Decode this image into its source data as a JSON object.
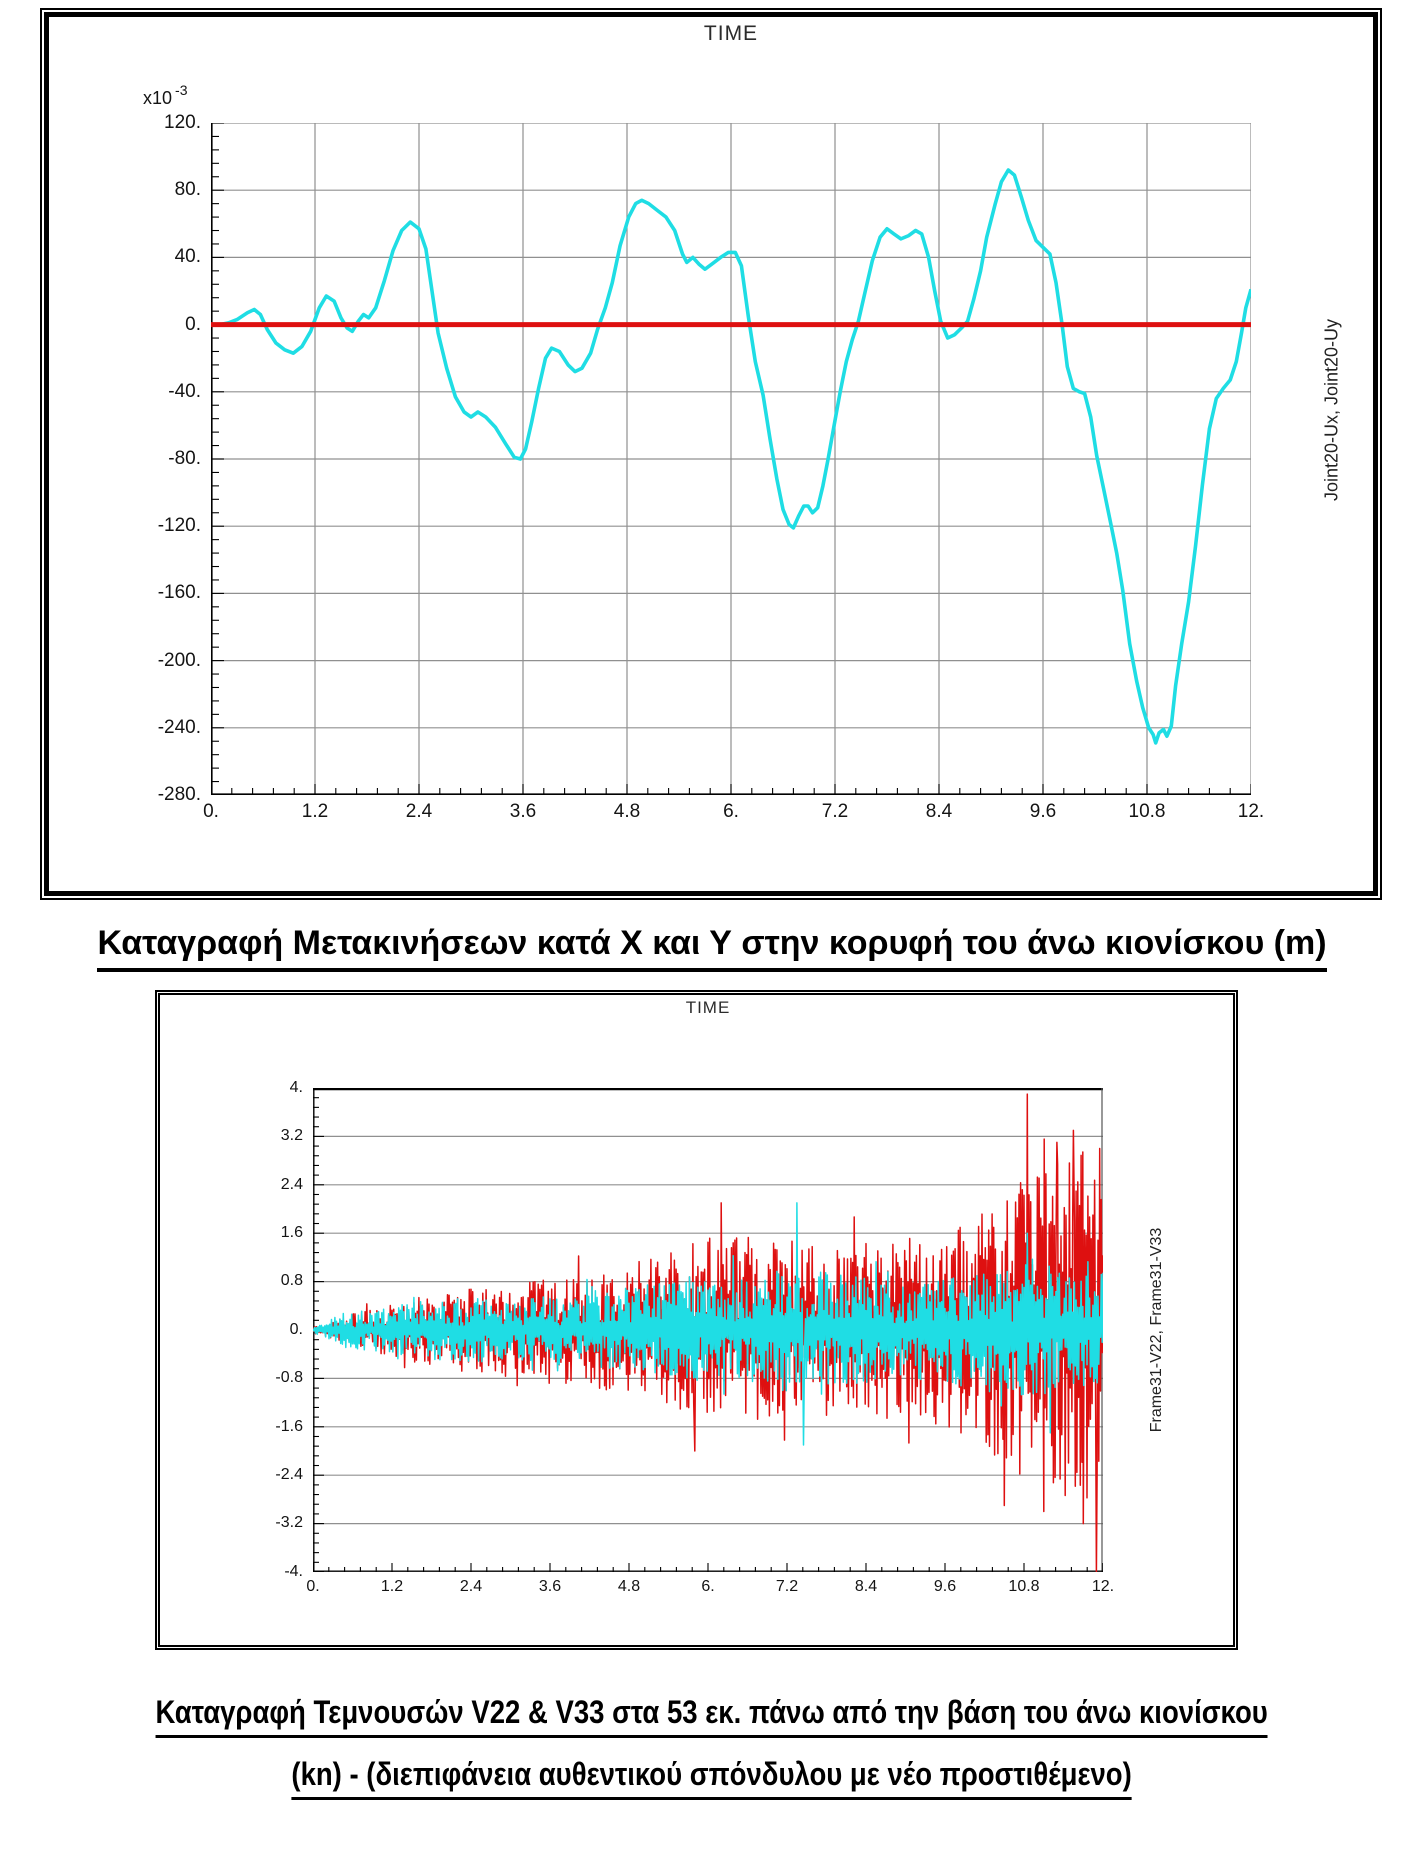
{
  "captions": {
    "top": "Καταγραφή Μετακινήσεων κατά Χ και Υ στην κορυφή του άνω κιονίσκου (m)",
    "bottom_line1": "Καταγραφή Τεμνουσών V22 & V33 στα 53 εκ. πάνω από την βάση του άνω κιονίσκου",
    "bottom_line2": "(kn) - (διεπιφάνεια αυθεντικού σπόνδυλου με νέο προστιθέμενο)"
  },
  "colors": {
    "cyan": "#1FDDE4",
    "red": "#DE1010",
    "grid": "#909090",
    "axis": "#000000"
  },
  "chart_data": [
    {
      "type": "line",
      "title": "TIME",
      "ylabel_right": "Joint20-Ux, Joint20-Uy",
      "y_scale": {
        "base": "x10",
        "exp": "-3"
      },
      "xlim": [
        0,
        12
      ],
      "ylim": [
        -280,
        120
      ],
      "grid": "both",
      "x_tick_labels": [
        "0.",
        "1.2",
        "2.4",
        "3.6",
        "4.8",
        "6.",
        "7.2",
        "8.4",
        "9.6",
        "10.8",
        "12."
      ],
      "y_tick_labels": [
        "120.",
        "80.",
        "40.",
        "0.",
        "-40.",
        "-80.",
        "-120.",
        "-160.",
        "-200.",
        "-240.",
        "-280."
      ],
      "series": [
        {
          "name": "Joint20-Ux",
          "color": "#1FDDE4",
          "width": 3.6,
          "points": [
            [
              0,
              0
            ],
            [
              0.1,
              0
            ],
            [
              0.2,
              1
            ],
            [
              0.3,
              3
            ],
            [
              0.42,
              7
            ],
            [
              0.5,
              9
            ],
            [
              0.57,
              6
            ],
            [
              0.65,
              -3
            ],
            [
              0.75,
              -11
            ],
            [
              0.85,
              -15
            ],
            [
              0.95,
              -17
            ],
            [
              1.05,
              -13
            ],
            [
              1.15,
              -4
            ],
            [
              1.25,
              10
            ],
            [
              1.33,
              17
            ],
            [
              1.42,
              14
            ],
            [
              1.5,
              4
            ],
            [
              1.57,
              -2
            ],
            [
              1.63,
              -4
            ],
            [
              1.7,
              2
            ],
            [
              1.76,
              6
            ],
            [
              1.82,
              4
            ],
            [
              1.9,
              10
            ],
            [
              2,
              26
            ],
            [
              2.1,
              44
            ],
            [
              2.2,
              56
            ],
            [
              2.3,
              61
            ],
            [
              2.4,
              57
            ],
            [
              2.48,
              45
            ],
            [
              2.55,
              20
            ],
            [
              2.62,
              -5
            ],
            [
              2.72,
              -26
            ],
            [
              2.82,
              -43
            ],
            [
              2.92,
              -52
            ],
            [
              3,
              -55
            ],
            [
              3.08,
              -52
            ],
            [
              3.17,
              -55
            ],
            [
              3.28,
              -61
            ],
            [
              3.4,
              -71
            ],
            [
              3.5,
              -79
            ],
            [
              3.57,
              -80
            ],
            [
              3.63,
              -74
            ],
            [
              3.7,
              -58
            ],
            [
              3.78,
              -38
            ],
            [
              3.86,
              -20
            ],
            [
              3.93,
              -14
            ],
            [
              4.02,
              -16
            ],
            [
              4.12,
              -24
            ],
            [
              4.2,
              -28
            ],
            [
              4.28,
              -26
            ],
            [
              4.38,
              -17
            ],
            [
              4.46,
              -3
            ],
            [
              4.55,
              10
            ],
            [
              4.63,
              25
            ],
            [
              4.72,
              47
            ],
            [
              4.82,
              64
            ],
            [
              4.9,
              72
            ],
            [
              4.97,
              74
            ],
            [
              5.05,
              72
            ],
            [
              5.15,
              68
            ],
            [
              5.25,
              64
            ],
            [
              5.35,
              56
            ],
            [
              5.44,
              42
            ],
            [
              5.49,
              37
            ],
            [
              5.56,
              40
            ],
            [
              5.63,
              36
            ],
            [
              5.7,
              33
            ],
            [
              5.78,
              36
            ],
            [
              5.88,
              40
            ],
            [
              5.97,
              43
            ],
            [
              6.05,
              43
            ],
            [
              6.12,
              35
            ],
            [
              6.2,
              5
            ],
            [
              6.28,
              -22
            ],
            [
              6.37,
              -42
            ],
            [
              6.45,
              -68
            ],
            [
              6.53,
              -92
            ],
            [
              6.6,
              -110
            ],
            [
              6.67,
              -119
            ],
            [
              6.72,
              -121
            ],
            [
              6.78,
              -114
            ],
            [
              6.84,
              -108
            ],
            [
              6.89,
              -108
            ],
            [
              6.94,
              -112
            ],
            [
              7,
              -109
            ],
            [
              7.06,
              -96
            ],
            [
              7.12,
              -80
            ],
            [
              7.19,
              -60
            ],
            [
              7.26,
              -40
            ],
            [
              7.33,
              -22
            ],
            [
              7.4,
              -9
            ],
            [
              7.47,
              2
            ],
            [
              7.55,
              20
            ],
            [
              7.63,
              38
            ],
            [
              7.72,
              52
            ],
            [
              7.8,
              57
            ],
            [
              7.88,
              54
            ],
            [
              7.96,
              51
            ],
            [
              8.05,
              53
            ],
            [
              8.13,
              56
            ],
            [
              8.2,
              54
            ],
            [
              8.28,
              40
            ],
            [
              8.35,
              20
            ],
            [
              8.42,
              2
            ],
            [
              8.5,
              -8
            ],
            [
              8.58,
              -6
            ],
            [
              8.66,
              -2
            ],
            [
              8.73,
              2
            ],
            [
              8.8,
              15
            ],
            [
              8.88,
              32
            ],
            [
              8.95,
              52
            ],
            [
              9.05,
              72
            ],
            [
              9.12,
              85
            ],
            [
              9.2,
              92
            ],
            [
              9.27,
              89
            ],
            [
              9.35,
              76
            ],
            [
              9.43,
              62
            ],
            [
              9.52,
              50
            ],
            [
              9.6,
              46
            ],
            [
              9.68,
              42
            ],
            [
              9.75,
              25
            ],
            [
              9.82,
              0
            ],
            [
              9.88,
              -25
            ],
            [
              9.95,
              -38
            ],
            [
              10.02,
              -40
            ],
            [
              10.08,
              -41
            ],
            [
              10.15,
              -55
            ],
            [
              10.22,
              -78
            ],
            [
              10.3,
              -98
            ],
            [
              10.38,
              -118
            ],
            [
              10.45,
              -136
            ],
            [
              10.52,
              -158
            ],
            [
              10.6,
              -190
            ],
            [
              10.68,
              -212
            ],
            [
              10.75,
              -228
            ],
            [
              10.82,
              -240
            ],
            [
              10.87,
              -244
            ],
            [
              10.9,
              -249
            ],
            [
              10.94,
              -243
            ],
            [
              10.99,
              -241
            ],
            [
              11.03,
              -245
            ],
            [
              11.08,
              -239
            ],
            [
              11.13,
              -215
            ],
            [
              11.2,
              -190
            ],
            [
              11.28,
              -165
            ],
            [
              11.36,
              -132
            ],
            [
              11.44,
              -95
            ],
            [
              11.52,
              -62
            ],
            [
              11.6,
              -44
            ],
            [
              11.68,
              -38
            ],
            [
              11.76,
              -33
            ],
            [
              11.83,
              -22
            ],
            [
              11.89,
              -5
            ],
            [
              11.94,
              10
            ],
            [
              12,
              21
            ]
          ]
        },
        {
          "name": "Joint20-Uy",
          "color": "#DE1010",
          "width": 5,
          "constant": 0
        }
      ]
    },
    {
      "type": "line",
      "title": "TIME",
      "ylabel_right": "Frame31-V22, Frame31-V33",
      "xlim": [
        0,
        12
      ],
      "ylim": [
        -4,
        4
      ],
      "grid": "horizontal",
      "x_tick_labels": [
        "0.",
        "1.2",
        "2.4",
        "3.6",
        "4.8",
        "6.",
        "7.2",
        "8.4",
        "9.6",
        "10.8",
        "12."
      ],
      "y_tick_labels": [
        "4.",
        "3.2",
        "2.4",
        "1.6",
        "0.8",
        "0.",
        "-0.8",
        "-1.6",
        "-2.4",
        "-3.2",
        "-4."
      ],
      "series": [
        {
          "name": "Frame31-V22",
          "color": "#DE1010",
          "width": 1.5,
          "noise": {
            "seed": 77,
            "samples": 940,
            "envelope": [
              [
                0,
                0.05
              ],
              [
                0.5,
                0.25
              ],
              [
                1,
                0.4
              ],
              [
                1.5,
                0.55
              ],
              [
                2,
                0.6
              ],
              [
                2.5,
                0.75
              ],
              [
                3,
                0.7
              ],
              [
                3.5,
                0.9
              ],
              [
                4,
                0.9
              ],
              [
                4.5,
                1.0
              ],
              [
                5,
                1.2
              ],
              [
                5.5,
                1.35
              ],
              [
                6,
                1.5
              ],
              [
                6.5,
                1.55
              ],
              [
                7,
                1.5
              ],
              [
                7.5,
                1.45
              ],
              [
                8,
                1.4
              ],
              [
                8.5,
                1.45
              ],
              [
                9,
                1.5
              ],
              [
                9.5,
                1.6
              ],
              [
                10,
                1.8
              ],
              [
                10.5,
                2.2
              ],
              [
                10.8,
                2.5
              ],
              [
                11.2,
                2.8
              ],
              [
                11.6,
                3.0
              ],
              [
                12,
                2.9
              ]
            ],
            "spikes": [
              [
                5.8,
                -2.0
              ],
              [
                6.2,
                2.1
              ],
              [
                10.5,
                -2.9
              ],
              [
                10.85,
                3.9
              ],
              [
                11.1,
                -3.0
              ],
              [
                11.3,
                3.1
              ],
              [
                11.55,
                3.3
              ],
              [
                11.7,
                -3.2
              ],
              [
                11.9,
                -4.0
              ],
              [
                11.95,
                3.0
              ]
            ]
          }
        },
        {
          "name": "Frame31-V33",
          "color": "#1FDDE4",
          "width": 1.5,
          "noise": {
            "seed": 29,
            "samples": 940,
            "envelope": [
              [
                0,
                0.04
              ],
              [
                0.5,
                0.3
              ],
              [
                1,
                0.35
              ],
              [
                1.5,
                0.45
              ],
              [
                2,
                0.5
              ],
              [
                2.5,
                0.55
              ],
              [
                3,
                0.5
              ],
              [
                3.5,
                0.55
              ],
              [
                4,
                0.6
              ],
              [
                4.5,
                0.65
              ],
              [
                5,
                0.75
              ],
              [
                5.5,
                0.8
              ],
              [
                6,
                0.85
              ],
              [
                6.5,
                0.9
              ],
              [
                7,
                1.0
              ],
              [
                7.5,
                1.05
              ],
              [
                8,
                0.95
              ],
              [
                8.5,
                0.85
              ],
              [
                9,
                0.8
              ],
              [
                9.5,
                0.85
              ],
              [
                10,
                1.0
              ],
              [
                10.5,
                1.05
              ],
              [
                11,
                1.1
              ],
              [
                11.5,
                1.0
              ],
              [
                12,
                0.95
              ]
            ],
            "spikes": [
              [
                7.35,
                2.1
              ],
              [
                7.45,
                -1.9
              ],
              [
                10.85,
                1.6
              ],
              [
                11.2,
                -1.7
              ]
            ]
          }
        }
      ]
    }
  ]
}
